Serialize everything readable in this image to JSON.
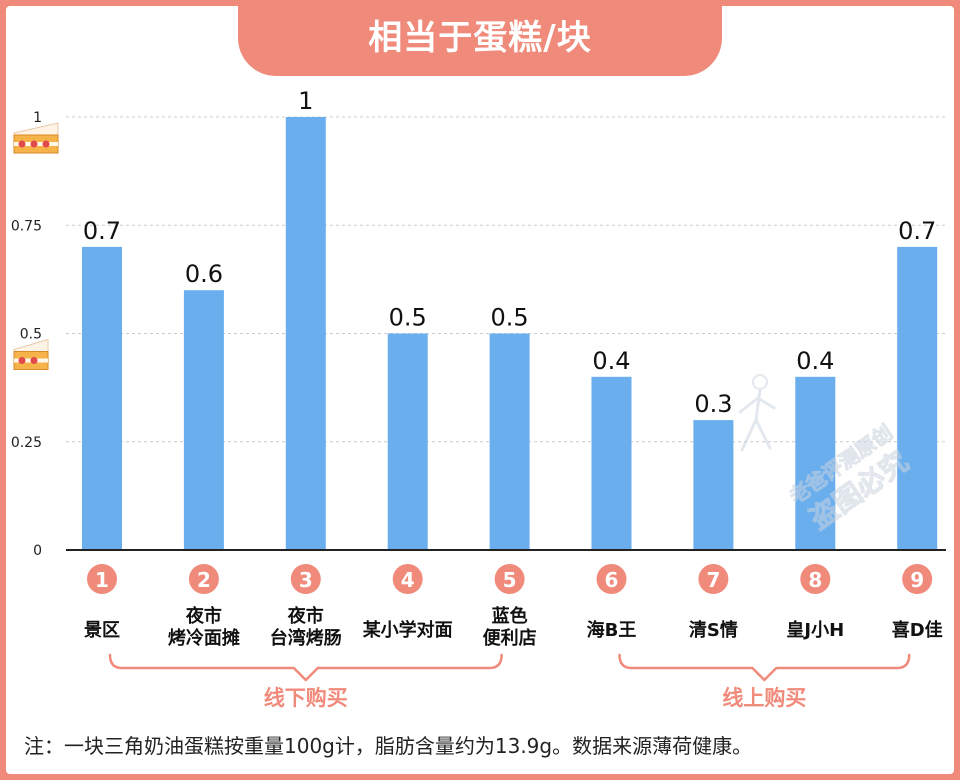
{
  "title": "相当于蛋糕/块",
  "chart_data": {
    "type": "bar",
    "title": "相当于蛋糕/块",
    "ylim": [
      0,
      1
    ],
    "yticks": [
      "0",
      "0.25",
      "0.5",
      "0.75",
      "1"
    ],
    "ytick_values": [
      0,
      0.25,
      0.5,
      0.75,
      1
    ],
    "grid": true,
    "categories": [
      {
        "num": "1",
        "lines": [
          "景区"
        ]
      },
      {
        "num": "2",
        "lines": [
          "夜市",
          "烤冷面摊"
        ]
      },
      {
        "num": "3",
        "lines": [
          "夜市",
          "台湾烤肠"
        ]
      },
      {
        "num": "4",
        "lines": [
          "某小学对面"
        ]
      },
      {
        "num": "5",
        "lines": [
          "蓝色",
          "便利店"
        ]
      },
      {
        "num": "6",
        "lines": [
          "海B王"
        ]
      },
      {
        "num": "7",
        "lines": [
          "清S情"
        ]
      },
      {
        "num": "8",
        "lines": [
          "皇J小H"
        ]
      },
      {
        "num": "9",
        "lines": [
          "喜D佳"
        ]
      }
    ],
    "values": [
      0.7,
      0.6,
      1,
      0.5,
      0.5,
      0.4,
      0.3,
      0.4,
      0.7
    ],
    "value_labels": [
      "0.7",
      "0.6",
      "1",
      "0.5",
      "0.5",
      "0.4",
      "0.3",
      "0.4",
      "0.7"
    ],
    "groups": [
      {
        "label": "线下购买",
        "first": 0,
        "last": 4
      },
      {
        "label": "线上购买",
        "first": 5,
        "last": 8
      }
    ],
    "icons": [
      {
        "name": "cake-slice-icon",
        "at_value": 1
      },
      {
        "name": "half-cake-slice-icon",
        "at_value": 0.5
      }
    ]
  },
  "watermark": [
    "老爸评测原创",
    "盗图必究"
  ],
  "footnote": "注：一块三角奶油蛋糕按重量100g计，脂肪含量约为13.9g。数据来源薄荷健康。",
  "colors": {
    "bar": "#6aaeee",
    "accent": "#f08a7b",
    "axis": "#222222",
    "grid": "#cccccc"
  }
}
